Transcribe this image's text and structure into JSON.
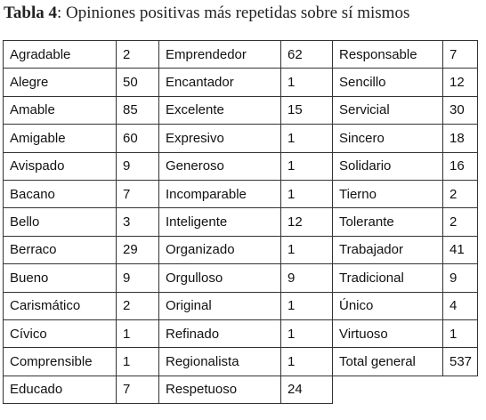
{
  "title": {
    "label": "Tabla 4",
    "text": ": Opiniones positivas más repetidas sobre sí mismos"
  },
  "table": {
    "rows": [
      [
        "Agradable",
        "2",
        "Emprendedor",
        "62",
        "Responsable",
        "7"
      ],
      [
        "Alegre",
        "50",
        "Encantador",
        "1",
        "Sencillo",
        "12"
      ],
      [
        "Amable",
        "85",
        "Excelente",
        "15",
        "Servicial",
        "30"
      ],
      [
        "Amigable",
        "60",
        "Expresivo",
        "1",
        "Sincero",
        "18"
      ],
      [
        "Avispado",
        "9",
        "Generoso",
        "1",
        "Solidario",
        "16"
      ],
      [
        "Bacano",
        "7",
        "Incomparable",
        "1",
        "Tierno",
        "2"
      ],
      [
        "Bello",
        "3",
        "Inteligente",
        "12",
        "Tolerante",
        "2"
      ],
      [
        "Berraco",
        "29",
        "Organizado",
        "1",
        "Trabajador",
        "41"
      ],
      [
        "Bueno",
        "9",
        "Orgulloso",
        "9",
        "Tradicional",
        "9"
      ],
      [
        "Carismático",
        "2",
        "Original",
        "1",
        "Único",
        "4"
      ],
      [
        "Cívico",
        "1",
        "Refinado",
        "1",
        "Virtuoso",
        "1"
      ],
      [
        "Comprensible",
        "1",
        "Regionalista",
        "1",
        "Total general",
        "537"
      ],
      [
        "Educado",
        "7",
        "Respetuoso",
        "24"
      ]
    ]
  }
}
